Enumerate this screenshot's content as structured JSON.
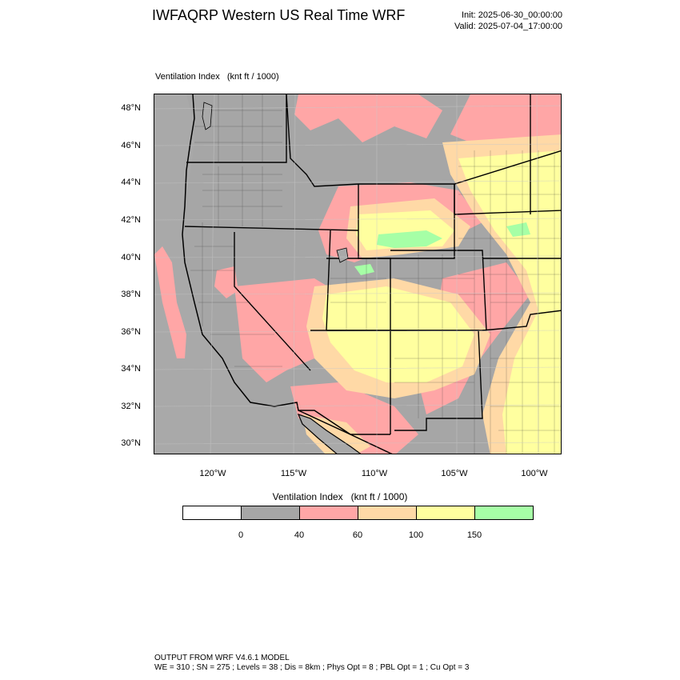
{
  "header": {
    "title": "IWFAQRP Western US Real Time WRF",
    "init": "Init: 2025-06-30_00:00:00",
    "valid": "Valid: 2025-07-04_17:00:00"
  },
  "map": {
    "subtitle": "Ventilation Index   (knt ft / 1000)",
    "lat_labels": [
      "48°N",
      "46°N",
      "44°N",
      "42°N",
      "40°N",
      "38°N",
      "36°N",
      "34°N",
      "32°N",
      "30°N"
    ],
    "lon_labels": [
      "120°W",
      "115°W",
      "110°W",
      "105°W",
      "100°W"
    ],
    "colors": {
      "ocean": "#a9a9a9",
      "band_0_40": "#a6a6a6",
      "band_40_60": "#ffa6a6",
      "band_60_100": "#ffd9a6",
      "band_100_150": "#ffff9f",
      "band_150_plus": "#a6ffa6",
      "boundary": "#000000"
    }
  },
  "legend": {
    "title": "Ventilation Index   (knt ft / 1000)",
    "ticks": [
      "0",
      "40",
      "60",
      "100",
      "150"
    ],
    "colors": [
      "#ffffff",
      "#a6a6a6",
      "#ffa6a6",
      "#ffd9a6",
      "#ffff9f",
      "#a6ffa6"
    ]
  },
  "footer": {
    "line1": "OUTPUT FROM WRF V4.6.1 MODEL",
    "line2": "WE = 310 ; SN = 275 ; Levels = 38 ; Dis = 8km ; Phys Opt = 8 ; PBL Opt = 1 ; Cu Opt = 3"
  }
}
